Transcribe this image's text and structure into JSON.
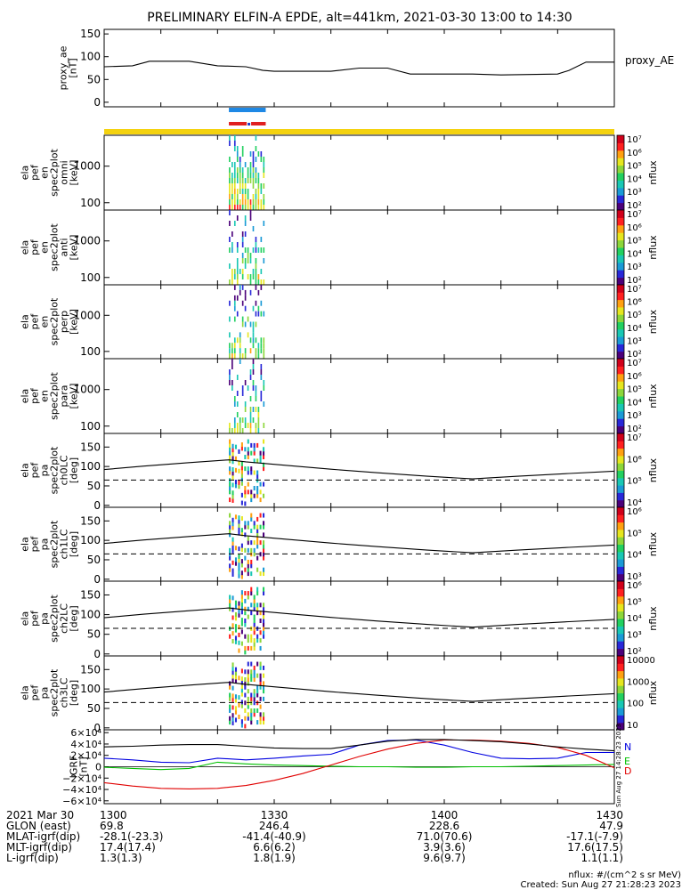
{
  "title": "PRELIMINARY ELFIN-A EPDE, alt=441km, 2021-03-30 13:00 to 14:30",
  "colors": {
    "axis": "#000000",
    "state_bar": "#f4d20f",
    "fast_survey": "#1e88e5",
    "seg_red": "#e02020",
    "seg_blue": "#1e3cd0",
    "comp_N": "#0000e0",
    "comp_E": "#00c000",
    "comp_D": "#e00000",
    "colormap": [
      "#4b007a",
      "#2828d8",
      "#1a9ad6",
      "#19c7b4",
      "#22d060",
      "#8cd63a",
      "#e6e61e",
      "#ffa010",
      "#ff2020",
      "#d0001a"
    ]
  },
  "chart_data": [
    {
      "type": "line",
      "panel": "proxy_ae",
      "ylabel": "proxy_ae [nT]",
      "legend": "proxy_AE",
      "ylim": [
        -10,
        160
      ],
      "yticks": [
        "150",
        "100",
        "50",
        "0"
      ],
      "x_minutes": [
        0,
        5,
        8,
        10,
        15,
        20,
        25,
        28,
        30,
        40,
        45,
        50,
        54,
        60,
        65,
        70,
        75,
        80,
        82,
        85,
        90
      ],
      "values": [
        78,
        80,
        90,
        90,
        90,
        80,
        78,
        70,
        68,
        68,
        75,
        75,
        62,
        62,
        62,
        60,
        61,
        62,
        70,
        88,
        88
      ]
    },
    {
      "type": "heatmap",
      "panel": "omni",
      "ylabel": [
        "ela",
        "pef",
        "en",
        "spec2plot",
        "omni",
        "[keV]"
      ],
      "yticks": [
        "1000",
        "100"
      ],
      "ylog": [
        63,
        7000
      ],
      "colorbar": {
        "label": "nflux",
        "ticks": [
          "10⁷",
          "10⁶",
          "10⁵",
          "10⁴",
          "10³",
          "10²"
        ]
      }
    },
    {
      "type": "heatmap",
      "panel": "anti",
      "ylabel": [
        "ela",
        "pef",
        "en",
        "spec2plot",
        "anti",
        "[keV]"
      ],
      "yticks": [
        "1000",
        "100"
      ],
      "ylog": [
        63,
        7000
      ],
      "colorbar": {
        "label": "nflux",
        "ticks": [
          "10⁷",
          "10⁶",
          "10⁵",
          "10⁴",
          "10³",
          "10²"
        ]
      }
    },
    {
      "type": "heatmap",
      "panel": "perp",
      "ylabel": [
        "ela",
        "pef",
        "en",
        "spec2plot",
        "perp",
        "[keV]"
      ],
      "yticks": [
        "1000",
        "100"
      ],
      "ylog": [
        63,
        7000
      ],
      "colorbar": {
        "label": "nflux",
        "ticks": [
          "10⁷",
          "10⁶",
          "10⁵",
          "10⁴",
          "10³",
          "10²"
        ]
      }
    },
    {
      "type": "heatmap",
      "panel": "para",
      "ylabel": [
        "ela",
        "pef",
        "en",
        "spec2plot",
        "para",
        "[keV]"
      ],
      "yticks": [
        "1000",
        "100"
      ],
      "ylog": [
        63,
        7000
      ],
      "colorbar": {
        "label": "nflux",
        "ticks": [
          "10⁷",
          "10⁶",
          "10⁵",
          "10⁴",
          "10³",
          "10²"
        ]
      }
    },
    {
      "type": "heatmap",
      "panel": "ch0LC",
      "ylabel": [
        "ela",
        "pef",
        "pa",
        "spec2plot",
        "ch0LC",
        "[deg]"
      ],
      "yticks": [
        "150",
        "100",
        "50",
        "0"
      ],
      "ylim": [
        -5,
        185
      ],
      "colorbar": {
        "label": "nflux",
        "ticks": [
          "10⁷",
          "10⁶",
          "10⁵",
          "10⁴"
        ]
      }
    },
    {
      "type": "heatmap",
      "panel": "ch1LC",
      "ylabel": [
        "ela",
        "pef",
        "pa",
        "spec2plot",
        "ch1LC",
        "[deg]"
      ],
      "yticks": [
        "150",
        "100",
        "50",
        "0"
      ],
      "ylim": [
        -5,
        185
      ],
      "colorbar": {
        "label": "nflux",
        "ticks": [
          "10⁶",
          "10⁵",
          "10⁴",
          "10³"
        ]
      }
    },
    {
      "type": "heatmap",
      "panel": "ch2LC",
      "ylabel": [
        "ela",
        "pef",
        "pa",
        "spec2plot",
        "ch2LC",
        "[deg]"
      ],
      "yticks": [
        "150",
        "100",
        "50",
        "0"
      ],
      "ylim": [
        -5,
        185
      ],
      "colorbar": {
        "label": "nflux",
        "ticks": [
          "10⁶",
          "10⁵",
          "10⁴",
          "10³",
          "10²"
        ]
      }
    },
    {
      "type": "heatmap",
      "panel": "ch3LC",
      "ylabel": [
        "ela",
        "pef",
        "pa",
        "spec2plot",
        "ch3LC",
        "[deg]"
      ],
      "yticks": [
        "150",
        "100",
        "50",
        "0"
      ],
      "ylim": [
        -5,
        185
      ],
      "colorbar": {
        "label": "nflux",
        "ticks": [
          "10000",
          "1000",
          "100",
          "10"
        ]
      }
    },
    {
      "type": "line",
      "panel": "igrf",
      "ylabel": [
        "IGRF",
        "[nT]"
      ],
      "ylim": [
        -65000,
        65000
      ],
      "yticks": [
        "6×10⁴",
        "4×10⁴",
        "2×10⁴",
        "0",
        "−2×10⁴",
        "−4×10⁴",
        "−6×10⁴"
      ],
      "x_minutes": [
        0,
        5,
        10,
        15,
        20,
        25,
        30,
        35,
        40,
        45,
        50,
        55,
        60,
        65,
        70,
        75,
        80,
        85,
        90
      ],
      "series": [
        {
          "name": "N",
          "values": [
            15000,
            12000,
            8000,
            7000,
            15000,
            12000,
            15000,
            19000,
            22000,
            38000,
            46000,
            47000,
            38000,
            25000,
            15000,
            14000,
            15000,
            25000,
            25000
          ]
        },
        {
          "name": "E",
          "values": [
            -1000,
            -3000,
            -5000,
            -3000,
            8000,
            5000,
            3000,
            2000,
            1000,
            0,
            0,
            -1000,
            -1000,
            0,
            0,
            1000,
            2000,
            3000,
            4000
          ]
        },
        {
          "name": "D",
          "values": [
            -28000,
            -34000,
            -38000,
            -39000,
            -38000,
            -33000,
            -24000,
            -12000,
            3000,
            18000,
            31000,
            41000,
            47000,
            47000,
            45000,
            41000,
            34000,
            20000,
            -2000
          ]
        },
        {
          "name": "",
          "values": [
            35000,
            36000,
            38000,
            39000,
            39000,
            36000,
            33000,
            32000,
            32000,
            38000,
            45000,
            48000,
            48000,
            46000,
            44000,
            40000,
            35000,
            31000,
            28000
          ]
        }
      ],
      "legend": [
        "N",
        "E",
        "D"
      ]
    }
  ],
  "pa_reference": {
    "solid_values": [
      92,
      101,
      110,
      117,
      112,
      103,
      93,
      84,
      75,
      68,
      75,
      82,
      88
    ],
    "solid_x": [
      0,
      7,
      15,
      22,
      25,
      32,
      40,
      48,
      57,
      65,
      73,
      82,
      90
    ],
    "dashed_value": 65
  },
  "burst": {
    "start_minute": 22,
    "end_minute": 28.5
  },
  "stamp_right": "Sun Aug 27 14:28:23 2023",
  "footer": {
    "rows": [
      {
        "label": "2021 Mar 30",
        "values": [
          "1300",
          "1330",
          "1400",
          "1430"
        ]
      },
      {
        "label": "GLON (east)",
        "values": [
          "69.8",
          "246.4",
          "228.6",
          "47.9"
        ]
      },
      {
        "label": "MLAT-igrf(dip)",
        "values": [
          "-28.1(-23.3)",
          "-41.4(-40.9)",
          "71.0(70.6)",
          "-17.1(-7.9)"
        ]
      },
      {
        "label": "MLT-igrf(dip)",
        "values": [
          "17.4(17.4)",
          "6.6(6.2)",
          "3.9(3.6)",
          "17.6(17.5)"
        ]
      },
      {
        "label": "L-igrf(dip)",
        "values": [
          "1.3(1.3)",
          "1.8(1.9)",
          "9.6(9.7)",
          "1.1(1.1)"
        ]
      }
    ],
    "units": "nflux: #/(cm^2 s sr MeV)",
    "created": "Created: Sun Aug 27 21:28:23 2023"
  }
}
